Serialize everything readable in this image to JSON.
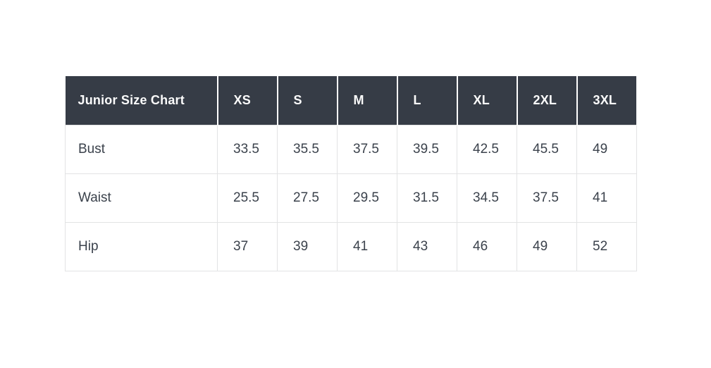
{
  "chart_data": {
    "type": "table",
    "title": "Junior Size Chart",
    "columns": [
      "XS",
      "S",
      "M",
      "L",
      "XL",
      "2XL",
      "3XL"
    ],
    "rows": [
      {
        "label": "Bust",
        "values": [
          33.5,
          35.5,
          37.5,
          39.5,
          42.5,
          45.5,
          49
        ]
      },
      {
        "label": "Waist",
        "values": [
          25.5,
          27.5,
          29.5,
          31.5,
          34.5,
          37.5,
          41
        ]
      },
      {
        "label": "Hip",
        "values": [
          37,
          39,
          41,
          43,
          46,
          49,
          52
        ]
      }
    ],
    "layout_hints": {
      "header_position": "top-row",
      "first_column_is_row_labels": true,
      "grid": true
    }
  },
  "styles": {
    "page_bg": "#ffffff",
    "header_bg": "#363c46",
    "header_text": "#fbfbfb",
    "body_text": "#3b424c",
    "border": "#e2e3e4",
    "header_divider": "#ffffff"
  }
}
